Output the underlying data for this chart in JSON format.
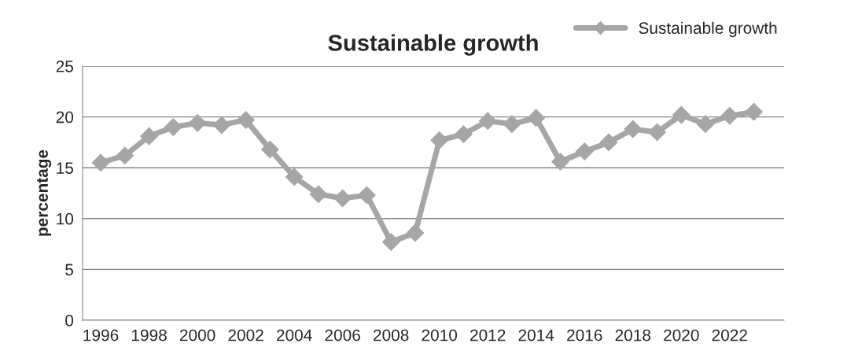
{
  "chart_data": {
    "type": "line",
    "title": "Sustainable growth",
    "ylabel": "percentage",
    "x": [
      1996,
      1997,
      1998,
      1999,
      2000,
      2001,
      2002,
      2003,
      2004,
      2005,
      2006,
      2007,
      2008,
      2009,
      2010,
      2011,
      2012,
      2013,
      2014,
      2015,
      2016,
      2017,
      2018,
      2019,
      2020,
      2021,
      2022,
      2023
    ],
    "series": [
      {
        "name": "Sustainable growth",
        "color": "#a6a6a6",
        "values": [
          15.5,
          16.2,
          18.1,
          19.0,
          19.4,
          19.2,
          19.7,
          16.8,
          14.1,
          12.4,
          12.0,
          12.3,
          7.7,
          8.6,
          17.7,
          18.3,
          19.6,
          19.3,
          19.9,
          15.6,
          16.6,
          17.5,
          18.8,
          18.5,
          20.2,
          19.3,
          20.1,
          20.5
        ]
      }
    ],
    "xlim": [
      1995.25,
      2024.25
    ],
    "xticks": [
      1996,
      1998,
      2000,
      2002,
      2004,
      2006,
      2008,
      2010,
      2012,
      2014,
      2016,
      2018,
      2020,
      2022
    ],
    "ylim": [
      0,
      25
    ],
    "yticks": [
      0,
      5,
      10,
      15,
      20,
      25
    ],
    "grid": "y",
    "legend": "top right",
    "marker": "diamond",
    "line_style": "solid"
  }
}
